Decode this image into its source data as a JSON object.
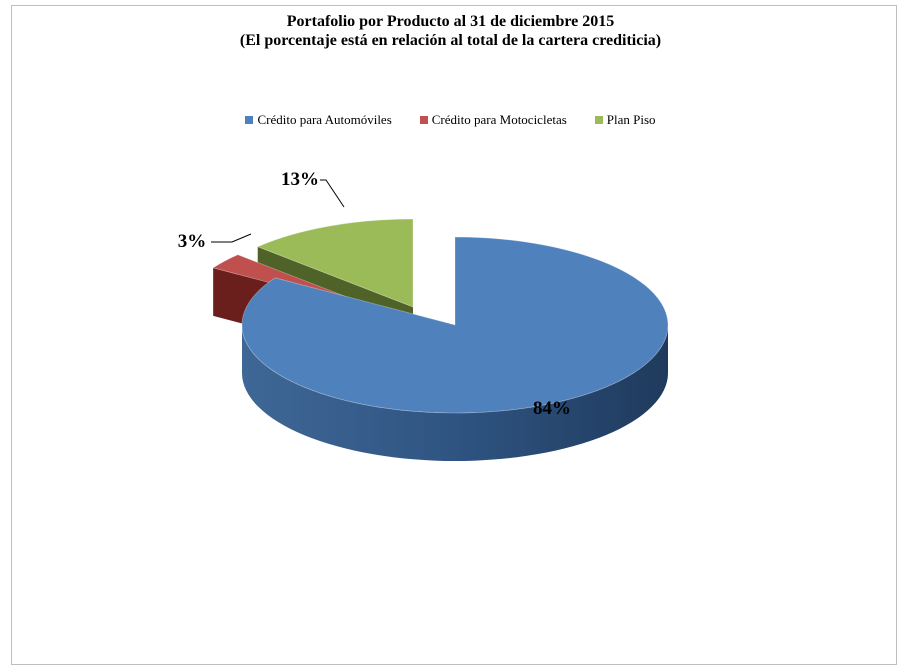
{
  "chart_data": {
    "type": "pie",
    "title": "Portafolio por Producto al 31 de diciembre 2015",
    "subtitle": "(El porcentaje está en relación al total de la cartera crediticia)",
    "categories": [
      "Crédito para Automóviles",
      "Crédito para Motocicletas",
      "Plan Piso"
    ],
    "values": [
      84,
      3,
      13
    ],
    "labels": [
      "84%",
      "3%",
      "13%"
    ],
    "colors": [
      "#4f81bd",
      "#c0504d",
      "#9bbb59"
    ],
    "side_colors": [
      "#2c4d75",
      "#6b1f1d",
      "#4f6228"
    ],
    "legend_position": "top",
    "style": "3d-exploded"
  }
}
